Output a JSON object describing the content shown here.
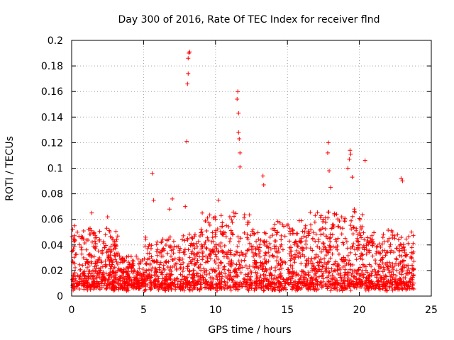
{
  "chart_data": {
    "type": "scatter",
    "title": "Day 300 of 2016, Rate Of TEC Index for receiver flnd",
    "xlabel": "GPS time / hours",
    "ylabel": "ROTI / TECUs",
    "xlim": [
      0,
      25
    ],
    "ylim": [
      0,
      0.2
    ],
    "grid": true,
    "marker": "+",
    "marker_color": "#ff0000",
    "x_ticks": [
      0,
      5,
      10,
      15,
      20,
      25
    ],
    "x_tick_labels": [
      "0",
      "5",
      "10",
      "15",
      "20",
      "25"
    ],
    "y_ticks": [
      0,
      0.02,
      0.04,
      0.06,
      0.08,
      0.1,
      0.12,
      0.14,
      0.16,
      0.18,
      0.2
    ],
    "y_tick_labels": [
      "0",
      "0.02",
      "0.04",
      "0.06",
      "0.08",
      "0.1",
      "0.12",
      "0.14",
      "0.16",
      "0.18",
      "0.2"
    ],
    "data_range_hours": [
      0,
      23.8
    ],
    "outliers": {
      "x": [
        0.2,
        0.4,
        1.4,
        2.5,
        5.6,
        5.7,
        6.8,
        7.0,
        7.9,
        8.0,
        8.05,
        8.1,
        8.1,
        8.15,
        8.2,
        10.2,
        11.5,
        11.55,
        11.6,
        11.6,
        11.65,
        11.7,
        11.7,
        13.3,
        13.35,
        17.8,
        17.85,
        17.9,
        18.0,
        19.2,
        19.3,
        19.35,
        19.4,
        19.5,
        20.4,
        22.9,
        23.0
      ],
      "y": [
        0.055,
        0.05,
        0.065,
        0.062,
        0.096,
        0.075,
        0.068,
        0.076,
        0.07,
        0.121,
        0.166,
        0.174,
        0.186,
        0.19,
        0.191,
        0.075,
        0.154,
        0.16,
        0.143,
        0.128,
        0.123,
        0.112,
        0.101,
        0.094,
        0.087,
        0.112,
        0.12,
        0.098,
        0.085,
        0.1,
        0.107,
        0.114,
        0.111,
        0.093,
        0.106,
        0.092,
        0.09
      ]
    }
  }
}
